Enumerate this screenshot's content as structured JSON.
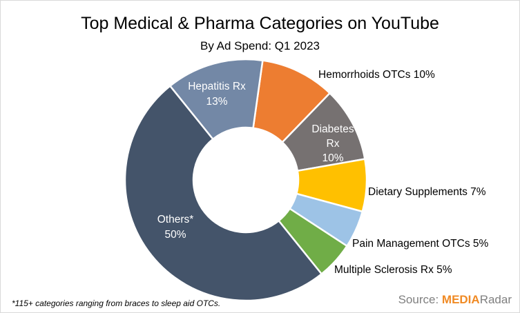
{
  "title": "Top Medical & Pharma Categories on YouTube",
  "subtitle": "By Ad Spend: Q1 2023",
  "footnote": "*115+ categories ranging from braces to sleep aid OTCs.",
  "source": {
    "prefix": "Source:",
    "brand_part1": "MEDIA",
    "brand_part2": "Radar"
  },
  "chart_data": {
    "type": "pie",
    "variant": "donut",
    "title": "Top Medical & Pharma Categories on YouTube",
    "subtitle": "By Ad Spend: Q1 2023",
    "slices": [
      {
        "label": "Hemorrhoids OTCs 10%",
        "value": 10,
        "color": "#ed7d31",
        "label_lines": [
          "Hemorrhoids OTCs 10%"
        ]
      },
      {
        "label": "Diabetes Rx 10%",
        "value": 10,
        "color": "#767171",
        "label_lines": [
          "Diabetes",
          "Rx",
          "10%"
        ]
      },
      {
        "label": "Dietary Supplements 7%",
        "value": 7,
        "color": "#ffc000",
        "label_lines": [
          "Dietary Supplements 7%"
        ]
      },
      {
        "label": "Pain Management OTCs 5%",
        "value": 5,
        "color": "#9dc3e6",
        "label_lines": [
          "Pain Management OTCs 5%"
        ]
      },
      {
        "label": "Multiple Sclerosis Rx 5%",
        "value": 5,
        "color": "#70ad47",
        "label_lines": [
          "Multiple Sclerosis Rx 5%"
        ]
      },
      {
        "label": "Others* 50%",
        "value": 50,
        "color": "#44546a",
        "label_lines": [
          "Others*",
          "50%"
        ]
      },
      {
        "label": "Hepatitis Rx 13%",
        "value": 13,
        "color": "#7388a6",
        "label_lines": [
          "Hepatitis Rx",
          "13%"
        ]
      }
    ]
  }
}
